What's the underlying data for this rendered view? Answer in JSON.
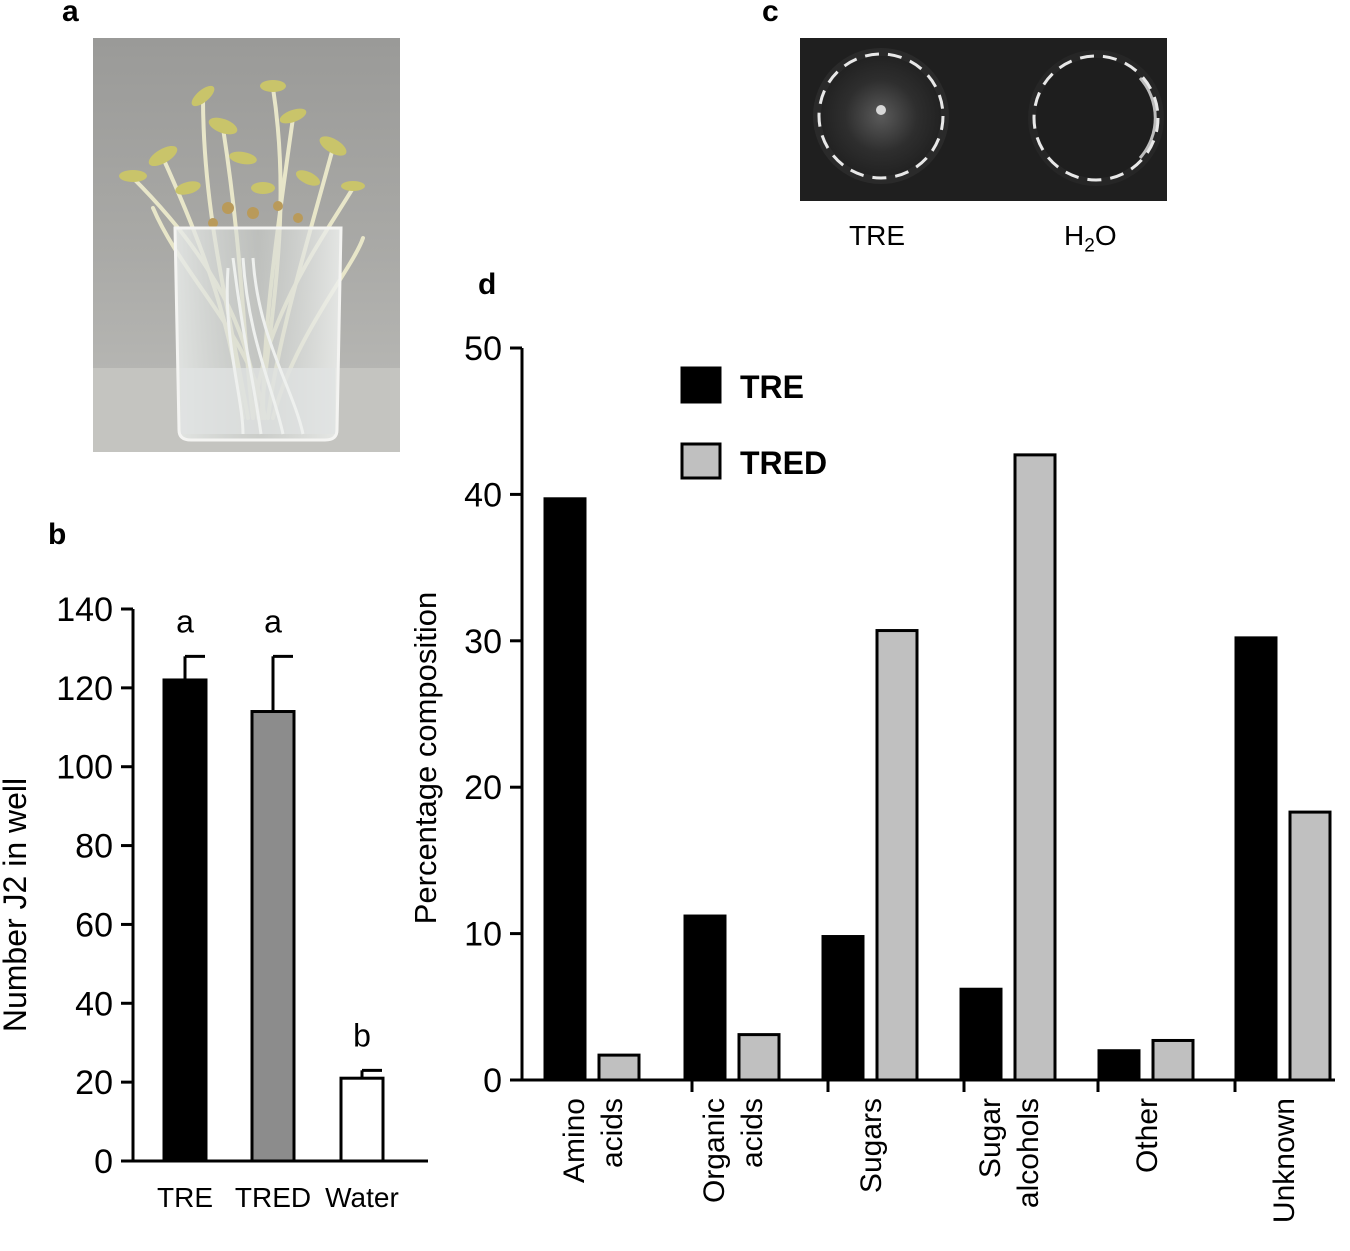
{
  "panel_letters": {
    "a": "a",
    "b": "b",
    "c": "c",
    "d": "d"
  },
  "photo_c_labels": {
    "left": "TRE",
    "right_main": "H",
    "right_sub": "2",
    "right_tail": "O"
  },
  "chart_data": [
    {
      "panel": "b",
      "type": "bar",
      "categories": [
        "TRE",
        "TRED",
        "Water"
      ],
      "values": [
        122,
        114,
        21
      ],
      "errors": [
        6,
        14,
        2
      ],
      "significance_letters": [
        "a",
        "a",
        "b"
      ],
      "colors": [
        "#000000",
        "#8c8c8c",
        "#ffffff"
      ],
      "xlabel": "",
      "ylabel": "Number J2 in well",
      "ylim": [
        0,
        140
      ],
      "yticks": [
        "0",
        "20",
        "40",
        "60",
        "80",
        "100",
        "120",
        "140"
      ],
      "grid": false
    },
    {
      "panel": "d",
      "type": "bar",
      "categories": [
        {
          "line1": "Amino",
          "line2": "acids"
        },
        {
          "line1": "Organic",
          "line2": "acids"
        },
        {
          "line1": "Sugars",
          "line2": ""
        },
        {
          "line1": "Sugar",
          "line2": "alcohols"
        },
        {
          "line1": "Other",
          "line2": ""
        },
        {
          "line1": "Unknown",
          "line2": ""
        }
      ],
      "series": [
        {
          "name": "TRE",
          "color": "#000000",
          "values": [
            39.7,
            11.2,
            9.8,
            6.2,
            2.0,
            30.2
          ]
        },
        {
          "name": "TRED",
          "color": "#c0c0c0",
          "values": [
            1.7,
            3.1,
            30.7,
            42.7,
            2.7,
            18.3
          ]
        }
      ],
      "xlabel": "",
      "ylabel": "Percentage composition",
      "ylim": [
        0,
        50
      ],
      "yticks": [
        "0",
        "10",
        "20",
        "30",
        "40",
        "50"
      ],
      "legend": "top-left",
      "grid": false
    }
  ]
}
